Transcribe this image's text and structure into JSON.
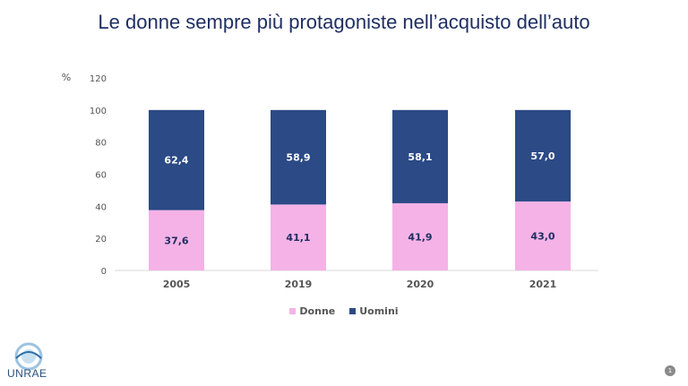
{
  "slide": {
    "title": "Le donne sempre più protagoniste nell’acquisto dell’auto",
    "logo_text": "UNRAE",
    "page_number": "1"
  },
  "colors": {
    "donne": "#f4b2e6",
    "uomini": "#2b4a86",
    "axis_text": "#555555",
    "data_label_light": "#ffffff",
    "data_label_dark": "#1f2f63"
  },
  "chart_data": {
    "type": "bar",
    "stacked": true,
    "title": "",
    "ylabel": "%",
    "xlabel": "",
    "ylim": [
      0,
      120
    ],
    "yticks": [
      0,
      20,
      40,
      60,
      80,
      100,
      120
    ],
    "categories": [
      "2005",
      "2019",
      "2020",
      "2021"
    ],
    "series": [
      {
        "name": "Donne",
        "values": [
          37.6,
          41.1,
          41.9,
          43.0
        ],
        "labels": [
          "37,6",
          "41,1",
          "41,9",
          "43,0"
        ]
      },
      {
        "name": "Uomini",
        "values": [
          62.4,
          58.9,
          58.1,
          57.0
        ],
        "labels": [
          "62,4",
          "58,9",
          "58,1",
          "57,0"
        ]
      }
    ],
    "legend": "bottom",
    "grid": false
  }
}
